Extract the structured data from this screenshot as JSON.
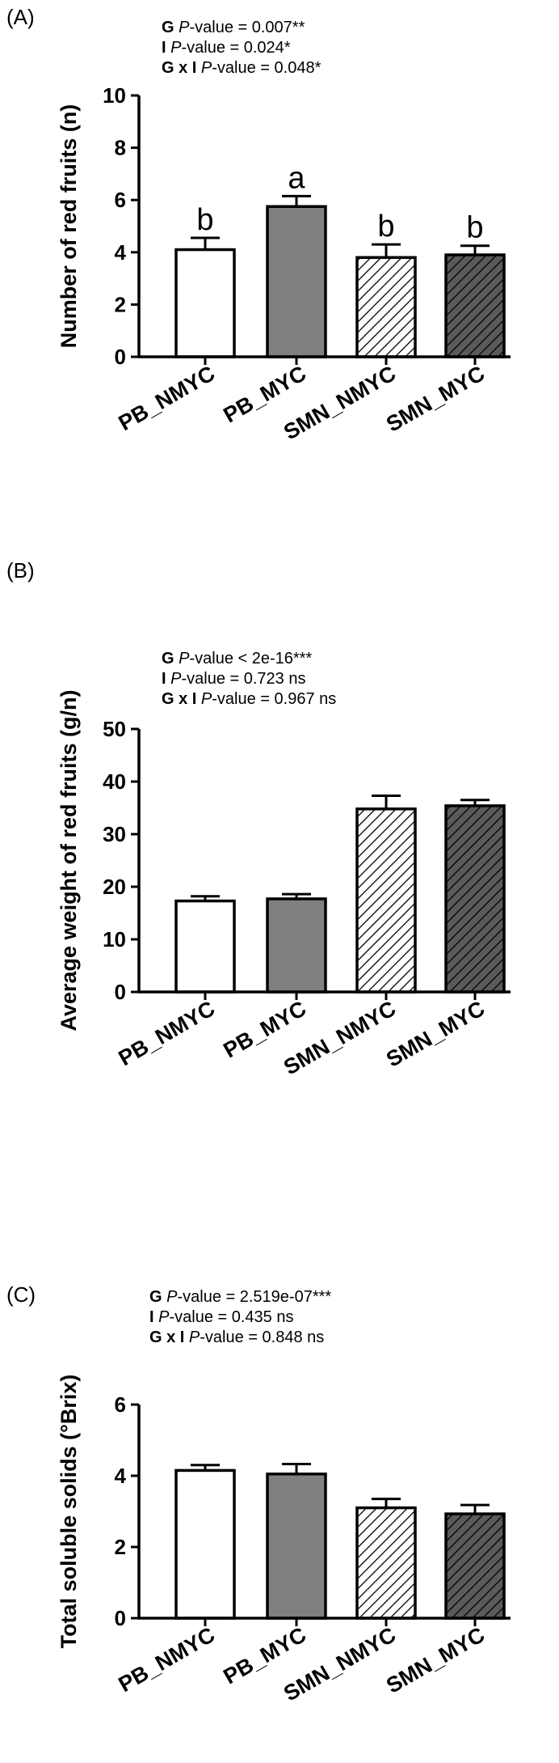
{
  "panels": [
    {
      "letter": "(A)",
      "stats": [
        {
          "factor": "G",
          "rest": "-value =  0.007**"
        },
        {
          "factor": "I",
          "rest": "-value = 0.024*"
        },
        {
          "factor": "G x I",
          "rest": "-value = 0.048*"
        }
      ],
      "chart_data": {
        "type": "bar",
        "categories": [
          "PB_NMYC",
          "PB_MYC",
          "SMN_NMYC",
          "SMN_MYC"
        ],
        "values": [
          4.1,
          5.75,
          3.8,
          3.9
        ],
        "errors": [
          0.45,
          0.4,
          0.5,
          0.35
        ],
        "significance_letters": [
          "b",
          "a",
          "b",
          "b"
        ],
        "ylabel": "Number of red fruits (n)",
        "ylim": [
          0,
          10
        ],
        "yticks": [
          0,
          2,
          4,
          6,
          8,
          10
        ],
        "grid": false
      }
    },
    {
      "letter": "(B)",
      "stats": [
        {
          "factor": "G",
          "rest": "-value < 2e-16***"
        },
        {
          "factor": "I",
          "rest": "-value = 0.723 ns"
        },
        {
          "factor": "G x I",
          "rest": "-value = 0.967 ns"
        }
      ],
      "chart_data": {
        "type": "bar",
        "categories": [
          "PB_NMYC",
          "PB_MYC",
          "SMN_NMYC",
          "SMN_MYC"
        ],
        "values": [
          17.3,
          17.7,
          34.8,
          35.4
        ],
        "errors": [
          0.9,
          0.9,
          2.5,
          1.1
        ],
        "significance_letters": [],
        "ylabel": "Average weight of red fruits  (g/n)",
        "ylim": [
          0,
          50
        ],
        "yticks": [
          0,
          10,
          20,
          30,
          40,
          50
        ],
        "grid": false
      }
    },
    {
      "letter": "(C)",
      "stats": [
        {
          "factor": "G",
          "rest": "-value =  2.519e-07***"
        },
        {
          "factor": "I",
          "rest": "-value = 0.435 ns"
        },
        {
          "factor": "G x I",
          "rest": "-value = 0.848 ns"
        }
      ],
      "chart_data": {
        "type": "bar",
        "categories": [
          "PB_NMYC",
          "PB_MYC",
          "SMN_NMYC",
          "SMN_MYC"
        ],
        "values": [
          4.15,
          4.05,
          3.1,
          2.93
        ],
        "errors": [
          0.15,
          0.28,
          0.25,
          0.25
        ],
        "significance_letters": [],
        "ylabel": "Total soluble solids (°Brix)",
        "ylim": [
          0,
          6
        ],
        "yticks": [
          0,
          2,
          4,
          6
        ],
        "grid": false
      }
    }
  ],
  "p_symbol": "P",
  "series_styles": [
    {
      "category": "PB_NMYC",
      "fill": "#ffffff",
      "hatch": "none"
    },
    {
      "category": "PB_MYC",
      "fill": "#808080",
      "hatch": "none"
    },
    {
      "category": "SMN_NMYC",
      "fill": "#ffffff",
      "hatch": "diagonal"
    },
    {
      "category": "SMN_MYC",
      "fill": "#5a5a5a",
      "hatch": "diagonal"
    }
  ]
}
